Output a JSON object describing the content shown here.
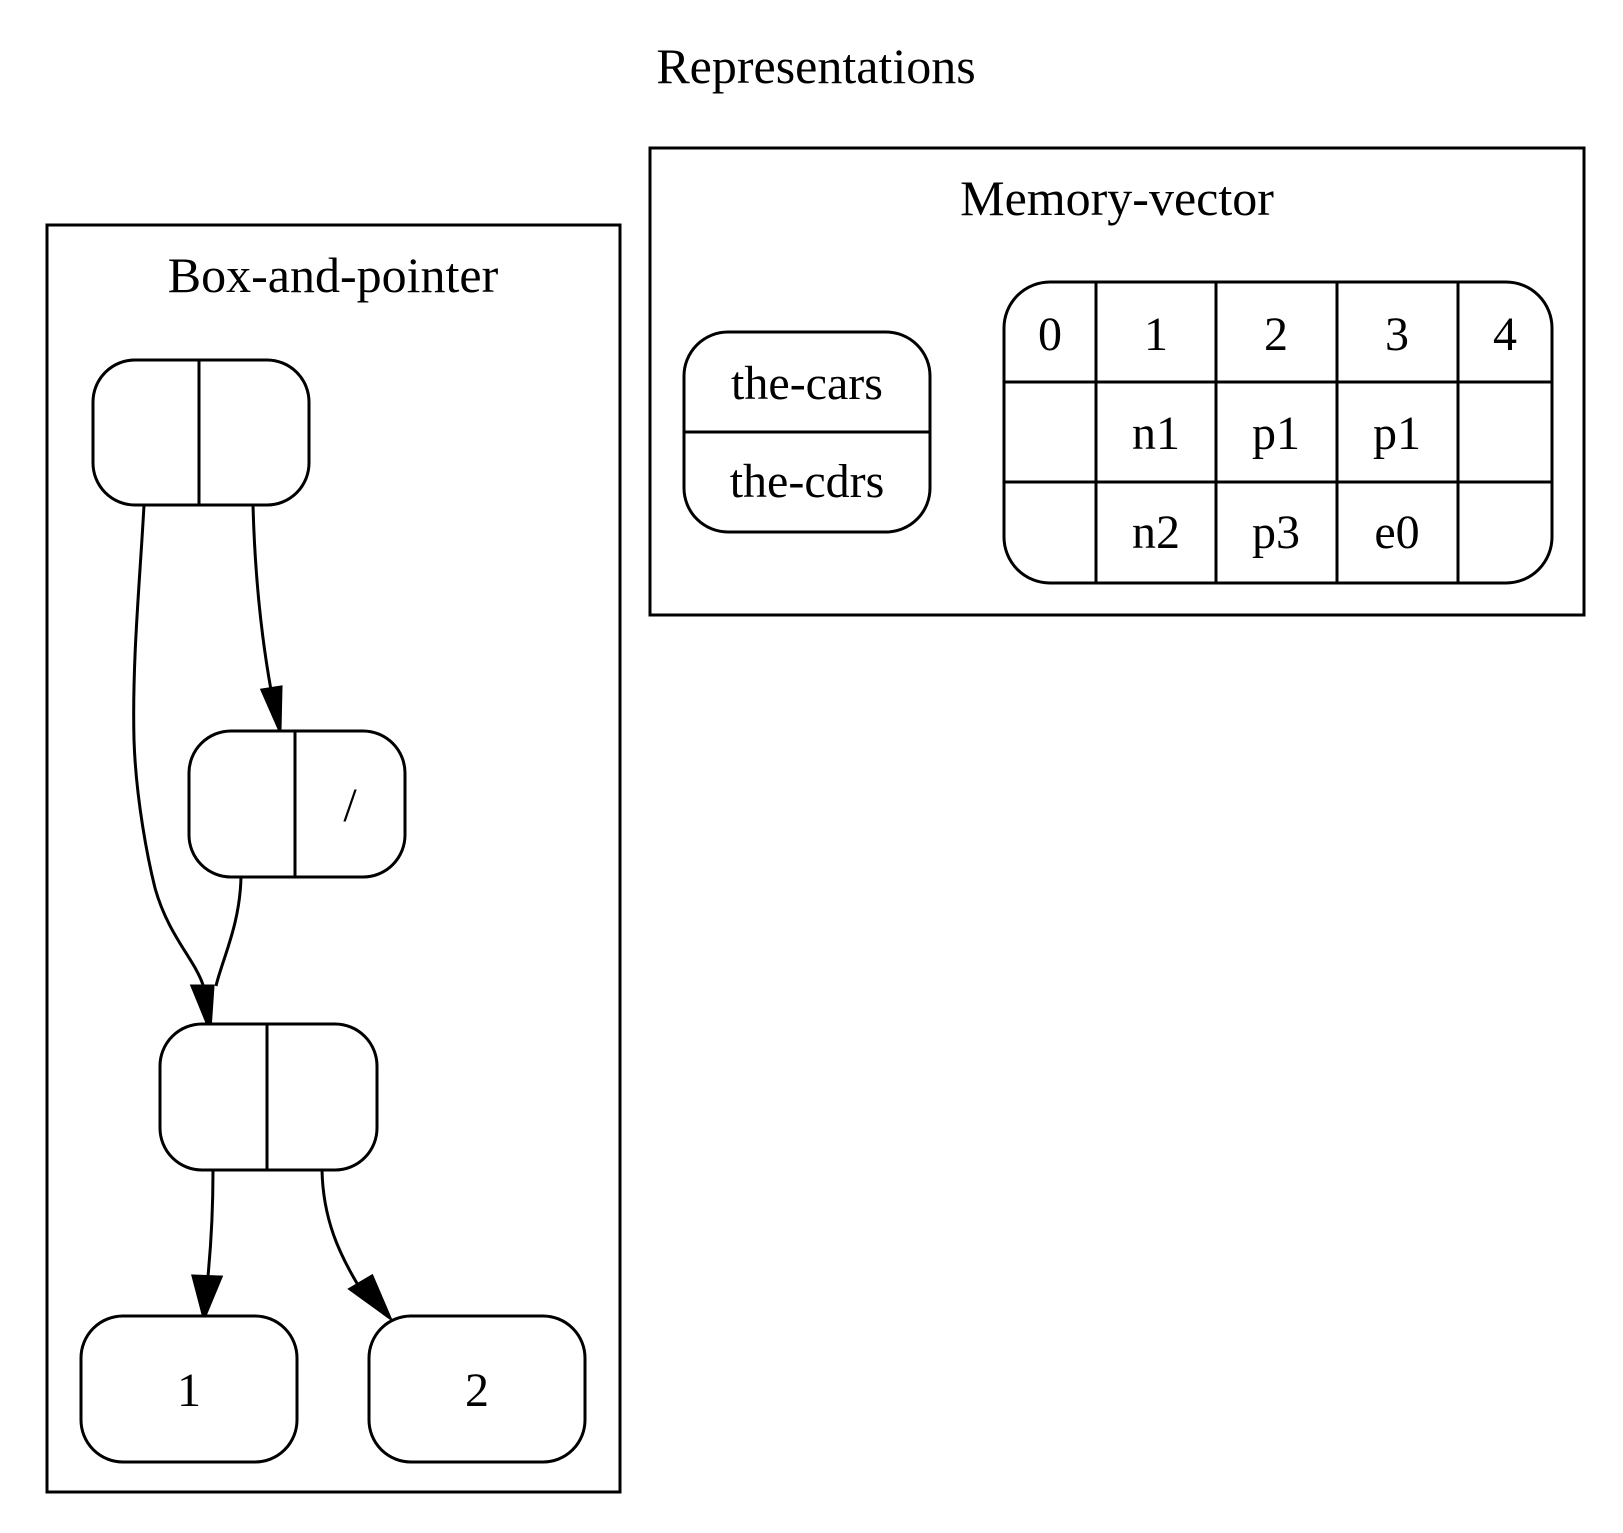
{
  "title": "Representations",
  "clusters": {
    "box_and_pointer": {
      "label": "Box-and-pointer",
      "nodes": {
        "pair_top": {
          "car": "",
          "cdr": ""
        },
        "pair_mid": {
          "car": "",
          "cdr": "/"
        },
        "pair_low": {
          "car": "",
          "cdr": ""
        },
        "leaf_one": {
          "label": "1"
        },
        "leaf_two": {
          "label": "2"
        }
      },
      "edges": [
        {
          "from": "pair_top.car",
          "to": "pair_low"
        },
        {
          "from": "pair_top.cdr",
          "to": "pair_mid"
        },
        {
          "from": "pair_mid.car",
          "to": "pair_low"
        },
        {
          "from": "pair_low.car",
          "to": "leaf_one"
        },
        {
          "from": "pair_low.cdr",
          "to": "leaf_two"
        }
      ]
    },
    "memory_vector": {
      "label": "Memory-vector",
      "registers": [
        "the-cars",
        "the-cdrs"
      ],
      "index_row": [
        "0",
        "1",
        "2",
        "3",
        "4"
      ],
      "cars_row": [
        "",
        "n1",
        "p1",
        "p1",
        ""
      ],
      "cdrs_row": [
        "",
        "n2",
        "p3",
        "e0",
        ""
      ]
    }
  },
  "colors": {
    "stroke": "#000000",
    "background": "#ffffff"
  }
}
